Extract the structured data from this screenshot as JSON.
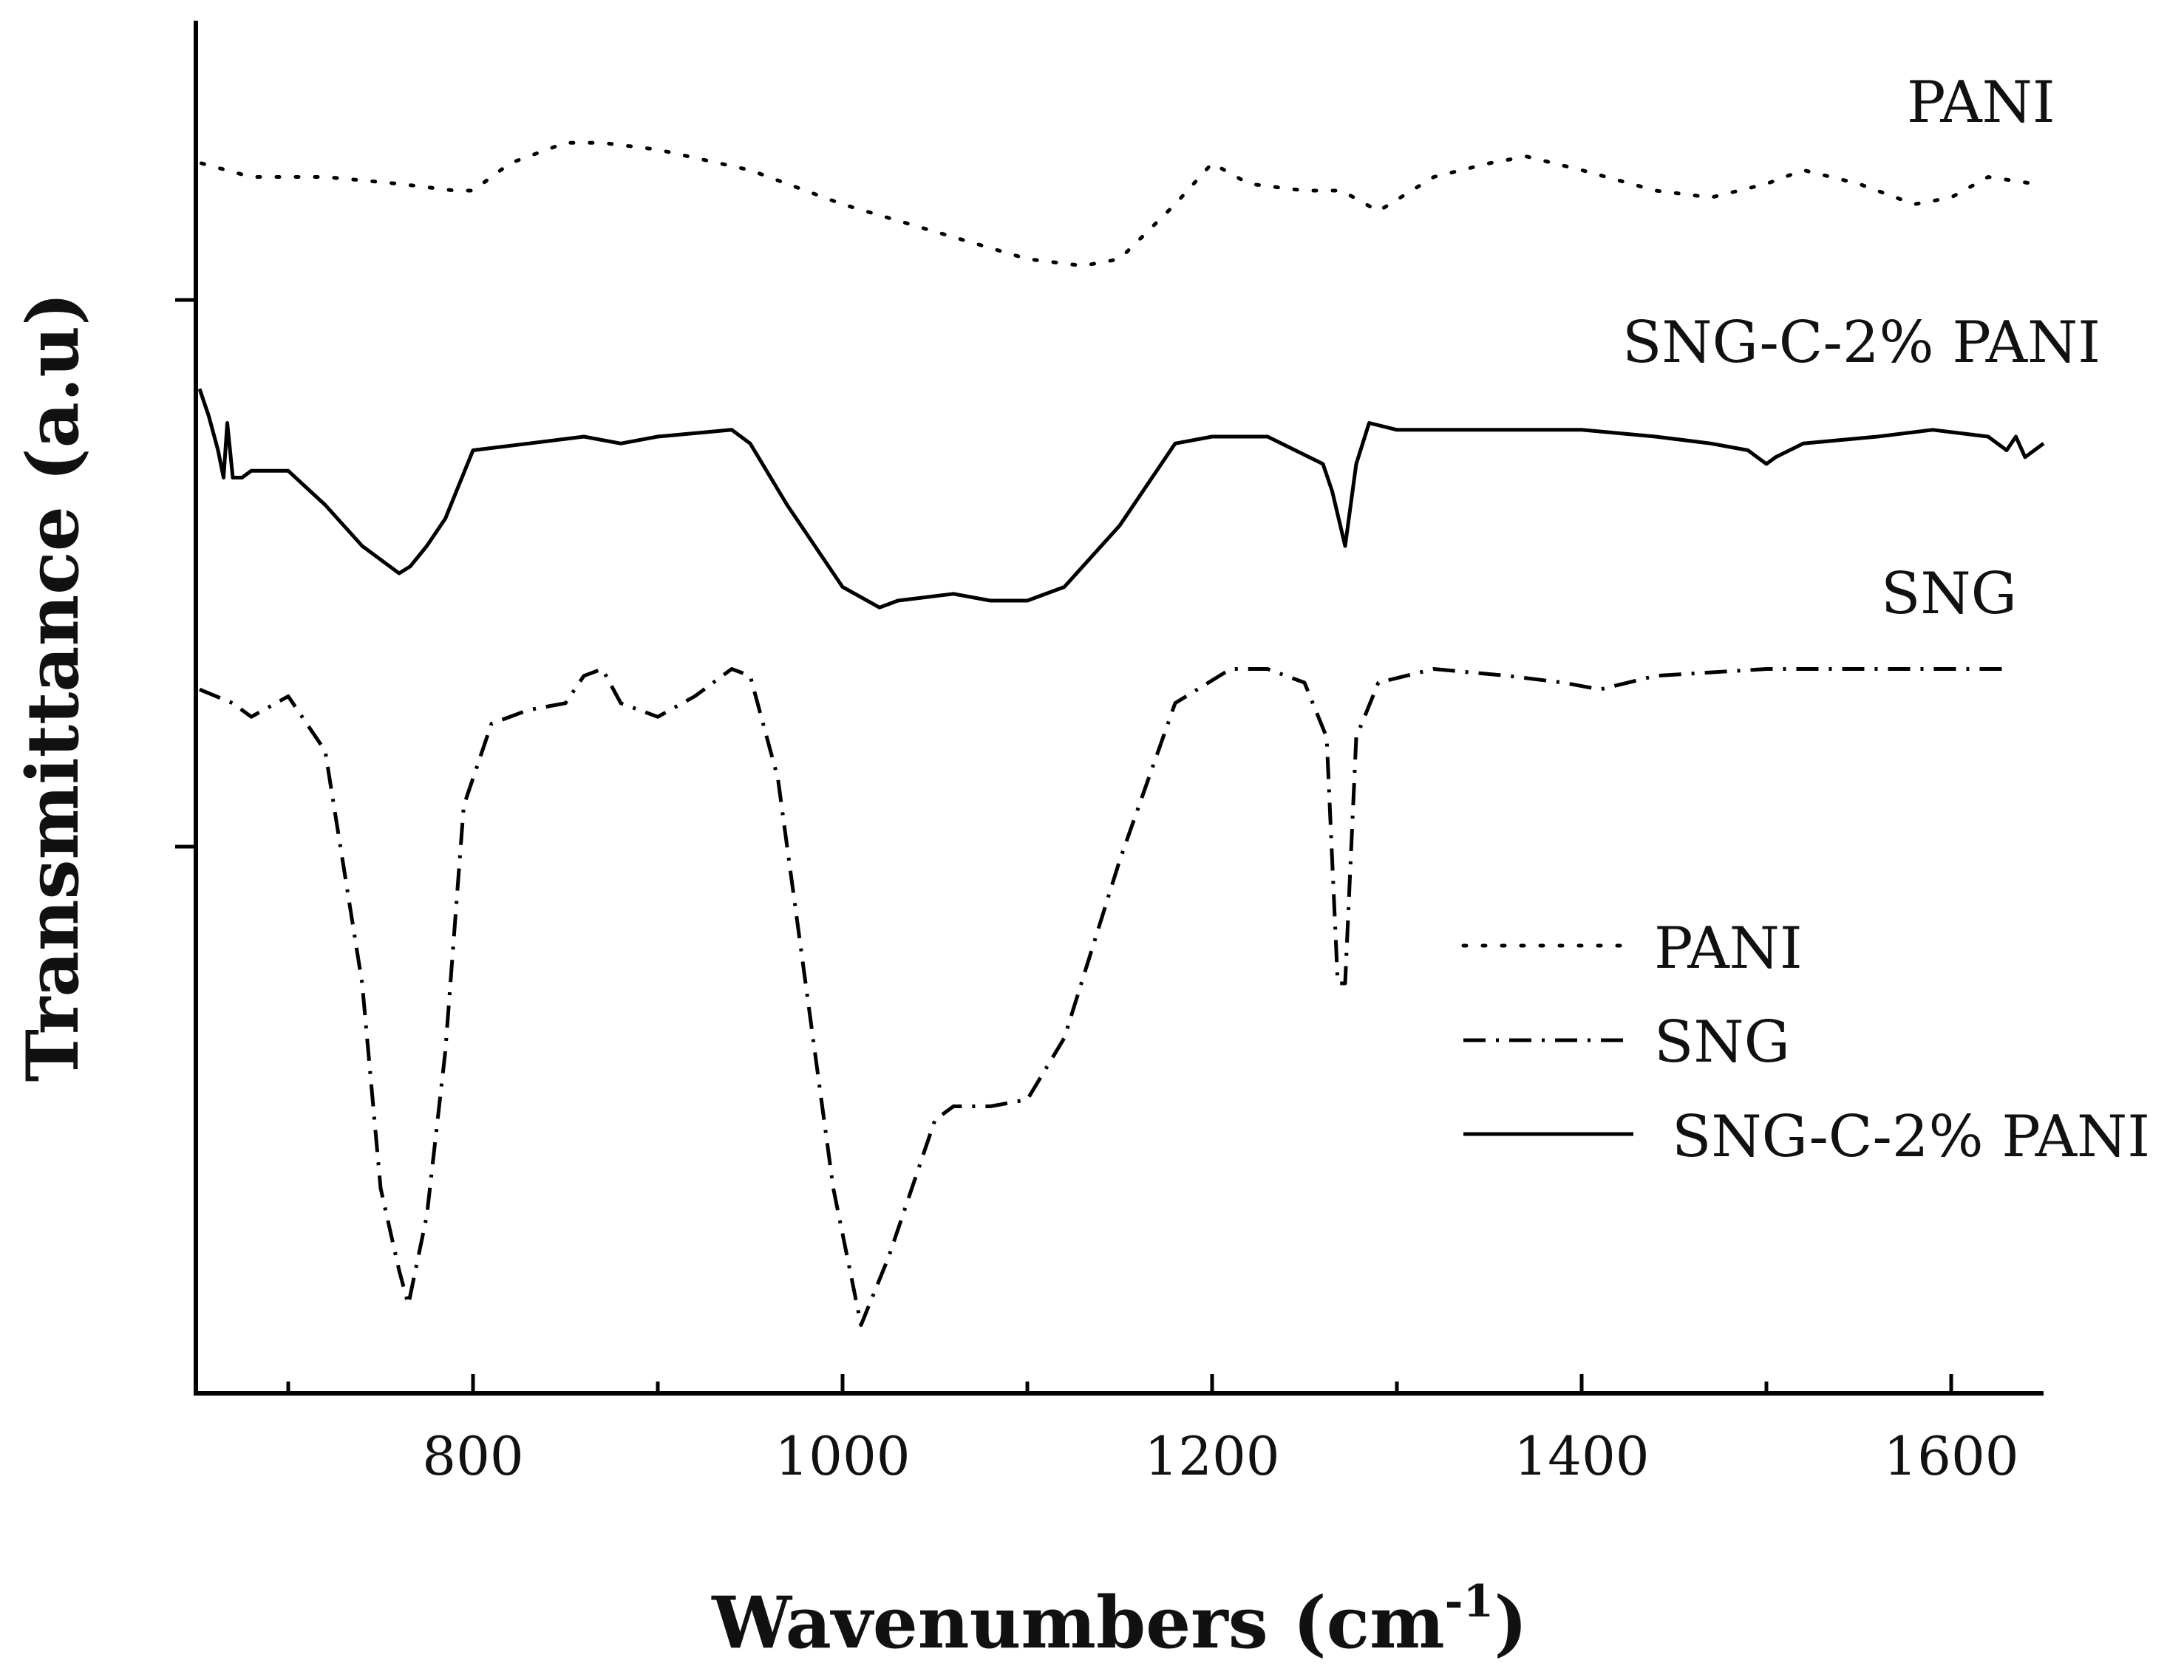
{
  "chart_data": {
    "type": "line",
    "title": "",
    "xlabel": "Wavenumbers (cm",
    "xlabel_superscript": "-1",
    "xlabel_suffix": ")",
    "ylabel": "Transmittance (a.u)",
    "xlim": [
      650,
      1650
    ],
    "ylim": [
      0,
      10
    ],
    "x_ticks": [
      800,
      1000,
      1200,
      1400,
      1600
    ],
    "x_minor_ticks": [
      700,
      900,
      1100,
      1300,
      1500
    ],
    "y_ticks": [
      4,
      8
    ],
    "grid": false,
    "legend_position": "bottom-right",
    "colors": {
      "line": "#000000",
      "text": "#111111",
      "background": "#ffffff"
    },
    "series": [
      {
        "name": "PANI",
        "dash": "dotted",
        "label": "PANI",
        "x": [
          653,
          680,
          720,
          760,
          790,
          800,
          820,
          850,
          870,
          900,
          950,
          1000,
          1050,
          1100,
          1130,
          1150,
          1180,
          1200,
          1220,
          1250,
          1270,
          1290,
          1320,
          1350,
          1370,
          1400,
          1440,
          1470,
          1500,
          1520,
          1550,
          1580,
          1600,
          1620,
          1645
        ],
        "y": [
          9.0,
          8.9,
          8.9,
          8.85,
          8.8,
          8.8,
          9.0,
          9.15,
          9.15,
          9.1,
          8.95,
          8.7,
          8.5,
          8.3,
          8.25,
          8.3,
          8.7,
          9.0,
          8.85,
          8.8,
          8.8,
          8.65,
          8.9,
          9.0,
          9.05,
          8.95,
          8.8,
          8.75,
          8.85,
          8.95,
          8.85,
          8.7,
          8.75,
          8.9,
          8.85
        ]
      },
      {
        "name": "SNG-C-2% PANI",
        "dash": "solid",
        "label": "SNG-C-2% PANI",
        "x": [
          652,
          657,
          662,
          665,
          667,
          670,
          672,
          675,
          680,
          700,
          720,
          740,
          760,
          766,
          775,
          785,
          800,
          830,
          860,
          880,
          900,
          940,
          950,
          970,
          1000,
          1020,
          1030,
          1060,
          1080,
          1100,
          1120,
          1150,
          1180,
          1200,
          1230,
          1260,
          1265,
          1272,
          1278,
          1285,
          1300,
          1350,
          1400,
          1440,
          1470,
          1490,
          1500,
          1505,
          1520,
          1560,
          1590,
          1620,
          1630,
          1635,
          1640,
          1650
        ],
        "y": [
          7.35,
          7.15,
          6.9,
          6.7,
          7.1,
          6.7,
          6.7,
          6.7,
          6.75,
          6.75,
          6.5,
          6.2,
          6.0,
          6.05,
          6.2,
          6.4,
          6.9,
          6.95,
          7.0,
          6.95,
          7.0,
          7.05,
          6.95,
          6.5,
          5.9,
          5.75,
          5.8,
          5.85,
          5.8,
          5.8,
          5.9,
          6.35,
          6.95,
          7.0,
          7.0,
          6.8,
          6.6,
          6.2,
          6.8,
          7.1,
          7.05,
          7.05,
          7.05,
          7.0,
          6.95,
          6.9,
          6.8,
          6.85,
          6.95,
          7.0,
          7.05,
          7.0,
          6.9,
          7.0,
          6.85,
          6.95
        ]
      },
      {
        "name": "SNG",
        "dash": "dash-dot",
        "label": "SNG",
        "x": [
          652,
          670,
          680,
          700,
          720,
          740,
          750,
          760,
          765,
          775,
          785,
          795,
          810,
          830,
          850,
          860,
          870,
          880,
          900,
          920,
          940,
          950,
          965,
          980,
          995,
          1010,
          1025,
          1040,
          1050,
          1060,
          1080,
          1100,
          1120,
          1150,
          1180,
          1210,
          1230,
          1250,
          1262,
          1268,
          1272,
          1278,
          1290,
          1320,
          1360,
          1390,
          1410,
          1440,
          1500,
          1560,
          1600,
          1630
        ],
        "y": [
          5.15,
          5.05,
          4.95,
          5.1,
          4.7,
          3.0,
          1.5,
          0.9,
          0.65,
          1.3,
          2.5,
          4.3,
          4.9,
          5.0,
          5.05,
          5.25,
          5.3,
          5.05,
          4.95,
          5.1,
          5.3,
          5.25,
          4.5,
          3.0,
          1.5,
          0.5,
          1.0,
          1.6,
          2.0,
          2.1,
          2.1,
          2.15,
          2.6,
          3.9,
          5.05,
          5.3,
          5.3,
          5.2,
          4.8,
          3.0,
          3.0,
          4.8,
          5.2,
          5.3,
          5.25,
          5.2,
          5.15,
          5.25,
          5.3,
          5.3,
          5.3,
          5.3
        ]
      }
    ],
    "legend": [
      {
        "name": "PANI",
        "dash": "dotted"
      },
      {
        "name": "SNG",
        "dash": "dash-dot"
      },
      {
        "name": "SNG-C-2% PANI",
        "dash": "solid"
      }
    ]
  }
}
